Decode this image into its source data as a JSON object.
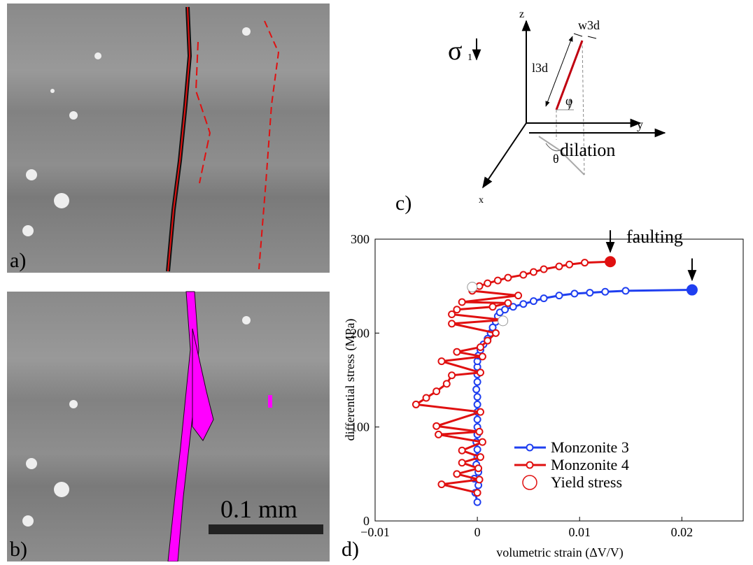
{
  "chart_data": {
    "type": "scatter-line",
    "panel_label": "d)",
    "x_label": "volumetric strain (ΔV/V)",
    "y_label": "differential stress (MPa)",
    "xlim": [
      -0.01,
      0.026
    ],
    "ylim": [
      0,
      300
    ],
    "xticks": [
      {
        "value": -0.01,
        "label": "−0.01"
      },
      0,
      0.01,
      0.02
    ],
    "yticks": [
      0,
      100,
      200,
      300
    ],
    "legend": "lower right",
    "annotations": [
      "faulting",
      "dilation"
    ],
    "series": [
      {
        "name": "Monzonite 3",
        "color": "#1f3ff0",
        "x": [
          0,
          -0.0002,
          0.0001,
          -0.0003,
          0.0001,
          -0.0001,
          0,
          0,
          -0.0001,
          0,
          0,
          0,
          0,
          0,
          0,
          -0.0001,
          0,
          0,
          0,
          0,
          0.0001,
          0.0003,
          0.0006,
          0.001,
          0.0013,
          0.0015,
          0.0018,
          0.002,
          0.0022,
          0.0027,
          0.0035,
          0.0045,
          0.0055,
          0.0065,
          0.008,
          0.0095,
          0.011,
          0.0125,
          0.0145,
          0.021
        ],
        "values": [
          20,
          30,
          38,
          45,
          52,
          60,
          68,
          76,
          84,
          92,
          100,
          108,
          116,
          124,
          132,
          140,
          148,
          156,
          164,
          170,
          176,
          182,
          188,
          194,
          200,
          206,
          212,
          218,
          222,
          225,
          228,
          231,
          234,
          237,
          240,
          242,
          243,
          244,
          245,
          246
        ]
      },
      {
        "name": "Monzonite 4",
        "color": "#e01010",
        "x": [
          0,
          -0.0035,
          0.0002,
          -0.002,
          0.0001,
          -0.0015,
          0.0003,
          -0.0015,
          0.0005,
          -0.0038,
          0.0002,
          -0.004,
          0.0003,
          -0.006,
          -0.005,
          -0.004,
          -0.003,
          -0.0025,
          0.0003,
          -0.0035,
          0.0005,
          -0.002,
          0.0003,
          0.001,
          0.0018,
          -0.0025,
          0.0025,
          -0.0025,
          -0.002,
          0.0015,
          0.003,
          -0.0015,
          0.004,
          -0.0005,
          0.0002,
          0.001,
          0.002,
          0.003,
          0.0045,
          0.0055,
          0.0065,
          0.008,
          0.009,
          0.0105,
          0.013
        ],
        "values": [
          30,
          39,
          44,
          50,
          56,
          62,
          68,
          75,
          84,
          92,
          95,
          101,
          116,
          124,
          131,
          138,
          146,
          155,
          158,
          170,
          175,
          180,
          185,
          192,
          200,
          210,
          214,
          220,
          225,
          228,
          232,
          233,
          240,
          245,
          250,
          253,
          256,
          259,
          262,
          265,
          268,
          271,
          273,
          275,
          276
        ]
      },
      {
        "name": "Yield stress",
        "color": "#e01010",
        "x": [
          -0.0005,
          0.0025
        ],
        "values": [
          249,
          213
        ]
      }
    ]
  },
  "panels": {
    "a": {
      "label": "a)"
    },
    "b": {
      "label": "b)",
      "scale_bar": "0.1 mm"
    },
    "c": {
      "label": "c)",
      "sigma": "σ",
      "sigma_sub": "1",
      "z": "z",
      "y": "y",
      "x": "x",
      "w": "w3d",
      "l": "l3d",
      "phi": "φ",
      "theta": "θ"
    }
  }
}
